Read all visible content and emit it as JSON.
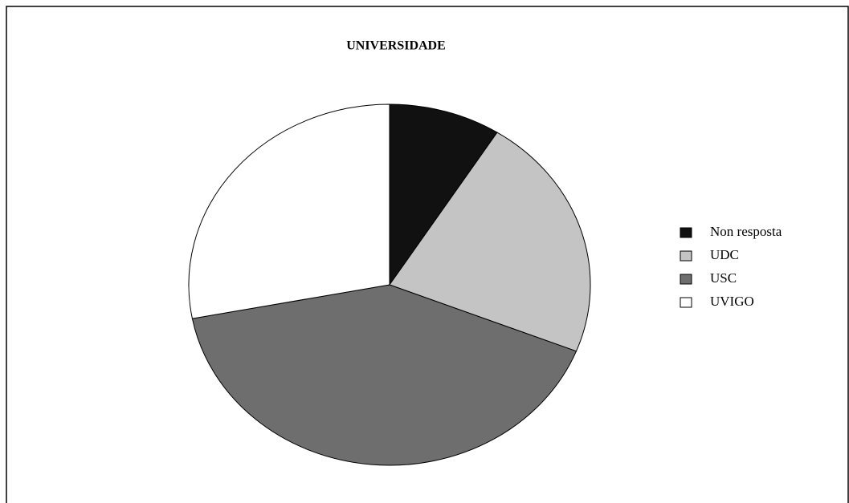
{
  "chart_data": {
    "type": "pie",
    "title": "UNIVERSIDADE",
    "categories": [
      "Non resposta",
      "UDC",
      "USC",
      "UVIGO"
    ],
    "values": [
      9,
      22,
      41,
      28
    ],
    "colors": [
      "#111111",
      "#c4c4c4",
      "#6e6e6e",
      "#ffffff"
    ],
    "legend": "right"
  }
}
